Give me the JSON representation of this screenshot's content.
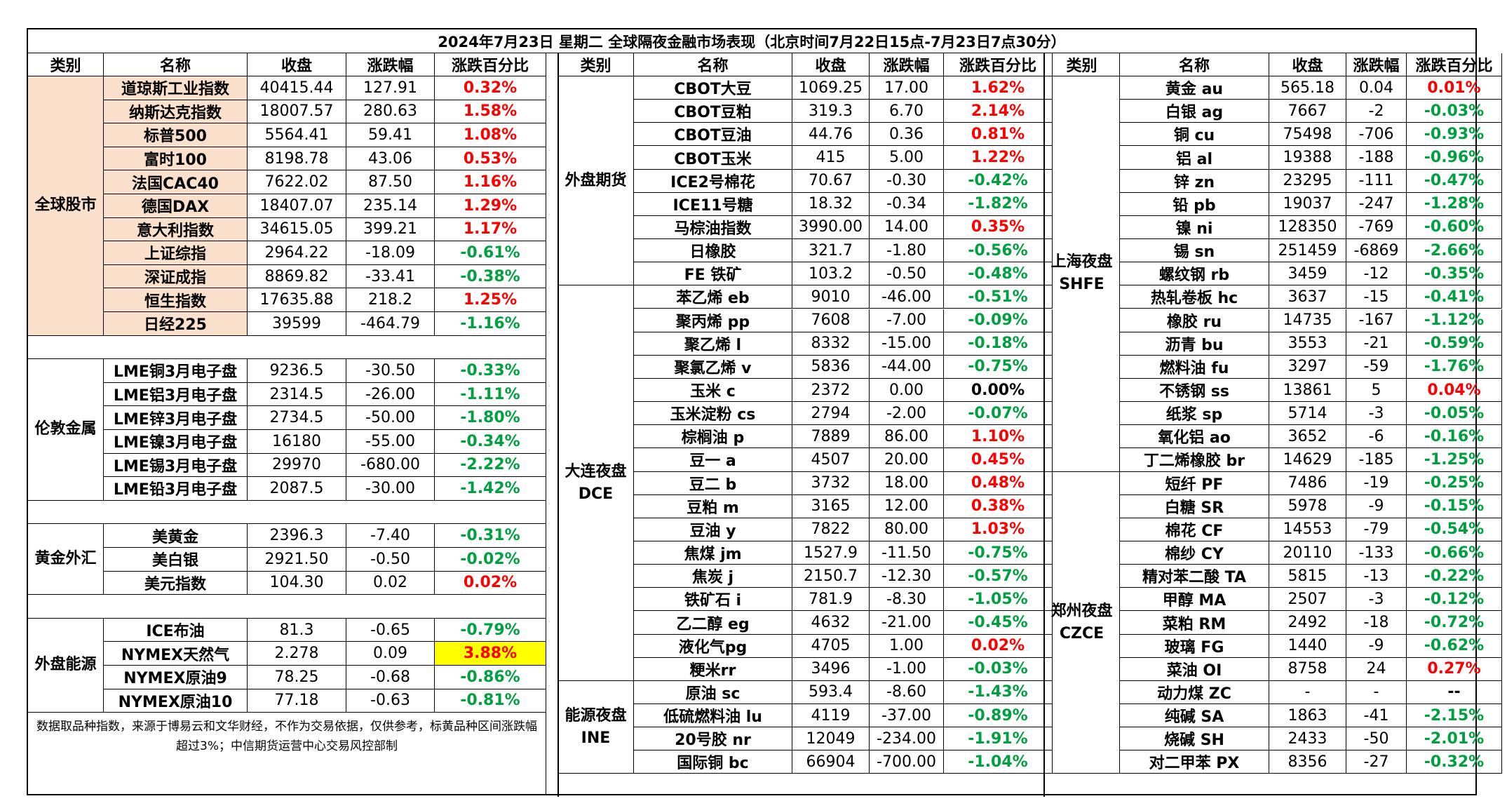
{
  "title": "2024年7月23日 星期二 全球隔夜金融市场表现（北京时间7月22日15点-7月23日7点30分）",
  "headers": [
    "类别",
    "名称",
    "收盘",
    "涨跌幅",
    "涨跌百分比"
  ],
  "note": "数据取品种指数，来源于博易云和文华财经，不作为交易依据，仅供参考，标黄品种区间涨跌幅超过3%；中信期货运营中心交易风控部制",
  "colors": {
    "up": "#ff0000",
    "down": "#00a040",
    "peach": "#fbe1cc",
    "highlight": "#ffff00"
  },
  "sections": [
    {
      "panel": 0,
      "category": "全球股市",
      "peach": true,
      "rows": [
        {
          "name": "道琼斯工业指数",
          "close": "40415.44",
          "change": "127.91",
          "pct": "0.32%",
          "dir": "up"
        },
        {
          "name": "纳斯达克指数",
          "close": "18007.57",
          "change": "280.63",
          "pct": "1.58%",
          "dir": "up"
        },
        {
          "name": "标普500",
          "close": "5564.41",
          "change": "59.41",
          "pct": "1.08%",
          "dir": "up"
        },
        {
          "name": "富时100",
          "close": "8198.78",
          "change": "43.06",
          "pct": "0.53%",
          "dir": "up"
        },
        {
          "name": "法国CAC40",
          "close": "7622.02",
          "change": "87.50",
          "pct": "1.16%",
          "dir": "up"
        },
        {
          "name": "德国DAX",
          "close": "18407.07",
          "change": "235.14",
          "pct": "1.29%",
          "dir": "up"
        },
        {
          "name": "意大利指数",
          "close": "34615.05",
          "change": "399.21",
          "pct": "1.17%",
          "dir": "up"
        },
        {
          "name": "上证综指",
          "close": "2964.22",
          "change": "-18.09",
          "pct": "-0.61%",
          "dir": "down"
        },
        {
          "name": "深证成指",
          "close": "8869.82",
          "change": "-33.41",
          "pct": "-0.38%",
          "dir": "down"
        },
        {
          "name": "恒生指数",
          "close": "17635.88",
          "change": "218.2",
          "pct": "1.25%",
          "dir": "up"
        },
        {
          "name": "日经225",
          "close": "39599",
          "change": "-464.79",
          "pct": "-1.16%",
          "dir": "down"
        }
      ]
    },
    {
      "panel": 0,
      "category": "伦敦金属",
      "peach": false,
      "rows": [
        {
          "name": "LME铜3月电子盘",
          "close": "9236.5",
          "change": "-30.50",
          "pct": "-0.33%",
          "dir": "down"
        },
        {
          "name": "LME铝3月电子盘",
          "close": "2314.5",
          "change": "-26.00",
          "pct": "-1.11%",
          "dir": "down"
        },
        {
          "name": "LME锌3月电子盘",
          "close": "2734.5",
          "change": "-50.00",
          "pct": "-1.80%",
          "dir": "down"
        },
        {
          "name": "LME镍3月电子盘",
          "close": "16180",
          "change": "-55.00",
          "pct": "-0.34%",
          "dir": "down"
        },
        {
          "name": "LME锡3月电子盘",
          "close": "29970",
          "change": "-680.00",
          "pct": "-2.22%",
          "dir": "down"
        },
        {
          "name": "LME铅3月电子盘",
          "close": "2087.5",
          "change": "-30.00",
          "pct": "-1.42%",
          "dir": "down"
        }
      ]
    },
    {
      "panel": 0,
      "category": "黄金外汇",
      "peach": false,
      "rows": [
        {
          "name": "美黄金",
          "close": "2396.3",
          "change": "-7.40",
          "pct": "-0.31%",
          "dir": "down"
        },
        {
          "name": "美白银",
          "close": "2921.50",
          "change": "-0.50",
          "pct": "-0.02%",
          "dir": "down"
        },
        {
          "name": "美元指数",
          "close": "104.30",
          "change": "0.02",
          "pct": "0.02%",
          "dir": "up"
        }
      ]
    },
    {
      "panel": 0,
      "category": "外盘能源",
      "peach": false,
      "rows": [
        {
          "name": "ICE布油",
          "close": "81.3",
          "change": "-0.65",
          "pct": "-0.79%",
          "dir": "down"
        },
        {
          "name": "NYMEX天然气",
          "close": "2.278",
          "change": "0.09",
          "pct": "3.88%",
          "dir": "up",
          "highlight": true
        },
        {
          "name": "NYMEX原油9",
          "close": "78.25",
          "change": "-0.68",
          "pct": "-0.86%",
          "dir": "down"
        },
        {
          "name": "NYMEX原油10",
          "close": "77.18",
          "change": "-0.63",
          "pct": "-0.81%",
          "dir": "down"
        }
      ]
    },
    {
      "panel": 1,
      "category": "外盘期货",
      "peach": false,
      "rows": [
        {
          "name": "CBOT大豆",
          "close": "1069.25",
          "change": "17.00",
          "pct": "1.62%",
          "dir": "up"
        },
        {
          "name": "CBOT豆粕",
          "close": "319.3",
          "change": "6.70",
          "pct": "2.14%",
          "dir": "up"
        },
        {
          "name": "CBOT豆油",
          "close": "44.76",
          "change": "0.36",
          "pct": "0.81%",
          "dir": "up"
        },
        {
          "name": "CBOT玉米",
          "close": "415",
          "change": "5.00",
          "pct": "1.22%",
          "dir": "up"
        },
        {
          "name": "ICE2号棉花",
          "close": "70.67",
          "change": "-0.30",
          "pct": "-0.42%",
          "dir": "down"
        },
        {
          "name": "ICE11号糖",
          "close": "18.32",
          "change": "-0.34",
          "pct": "-1.82%",
          "dir": "down"
        },
        {
          "name": "马棕油指数",
          "close": "3990.00",
          "change": "14.00",
          "pct": "0.35%",
          "dir": "up"
        },
        {
          "name": "日橡胶",
          "close": "321.7",
          "change": "-1.80",
          "pct": "-0.56%",
          "dir": "down"
        },
        {
          "name": "FE 铁矿",
          "close": "103.2",
          "change": "-0.50",
          "pct": "-0.48%",
          "dir": "down"
        }
      ]
    },
    {
      "panel": 1,
      "category": "大连夜盘\nDCE",
      "peach": false,
      "rows": [
        {
          "name": "苯乙烯 eb",
          "close": "9010",
          "change": "-46.00",
          "pct": "-0.51%",
          "dir": "down"
        },
        {
          "name": "聚丙烯 pp",
          "close": "7608",
          "change": "-7.00",
          "pct": "-0.09%",
          "dir": "down"
        },
        {
          "name": "聚乙烯 l",
          "close": "8332",
          "change": "-15.00",
          "pct": "-0.18%",
          "dir": "down"
        },
        {
          "name": "聚氯乙烯 v",
          "close": "5836",
          "change": "-44.00",
          "pct": "-0.75%",
          "dir": "down"
        },
        {
          "name": "玉米 c",
          "close": "2372",
          "change": "0.00",
          "pct": "0.00%",
          "dir": "flat"
        },
        {
          "name": "玉米淀粉 cs",
          "close": "2794",
          "change": "-2.00",
          "pct": "-0.07%",
          "dir": "down"
        },
        {
          "name": "棕榈油 p",
          "close": "7889",
          "change": "86.00",
          "pct": "1.10%",
          "dir": "up"
        },
        {
          "name": "豆一 a",
          "close": "4507",
          "change": "20.00",
          "pct": "0.45%",
          "dir": "up"
        },
        {
          "name": "豆二 b",
          "close": "3732",
          "change": "18.00",
          "pct": "0.48%",
          "dir": "up"
        },
        {
          "name": "豆粕 m",
          "close": "3165",
          "change": "12.00",
          "pct": "0.38%",
          "dir": "up"
        },
        {
          "name": "豆油 y",
          "close": "7822",
          "change": "80.00",
          "pct": "1.03%",
          "dir": "up"
        },
        {
          "name": "焦煤 jm",
          "close": "1527.9",
          "change": "-11.50",
          "pct": "-0.75%",
          "dir": "down"
        },
        {
          "name": "焦炭 j",
          "close": "2150.7",
          "change": "-12.30",
          "pct": "-0.57%",
          "dir": "down"
        },
        {
          "name": "铁矿石 i",
          "close": "781.9",
          "change": "-8.30",
          "pct": "-1.05%",
          "dir": "down"
        },
        {
          "name": "乙二醇 eg",
          "close": "4632",
          "change": "-21.00",
          "pct": "-0.45%",
          "dir": "down"
        },
        {
          "name": "液化气pg",
          "close": "4705",
          "change": "1.00",
          "pct": "0.02%",
          "dir": "up"
        },
        {
          "name": "粳米rr",
          "close": "3496",
          "change": "-1.00",
          "pct": "-0.03%",
          "dir": "down"
        }
      ]
    },
    {
      "panel": 1,
      "category": "能源夜盘\nINE",
      "peach": false,
      "rows": [
        {
          "name": "原油 sc",
          "close": "593.4",
          "change": "-8.60",
          "pct": "-1.43%",
          "dir": "down"
        },
        {
          "name": "低硫燃料油 lu",
          "close": "4119",
          "change": "-37.00",
          "pct": "-0.89%",
          "dir": "down"
        },
        {
          "name": "20号胶 nr",
          "close": "12049",
          "change": "-234.00",
          "pct": "-1.91%",
          "dir": "down"
        },
        {
          "name": "国际铜 bc",
          "close": "66904",
          "change": "-700.00",
          "pct": "-1.04%",
          "dir": "down"
        }
      ]
    },
    {
      "panel": 2,
      "category": "上海夜盘\nSHFE",
      "peach": false,
      "rows": [
        {
          "name": "黄金 au",
          "close": "565.18",
          "change": "0.04",
          "pct": "0.01%",
          "dir": "up"
        },
        {
          "name": "白银 ag",
          "close": "7667",
          "change": "-2",
          "pct": "-0.03%",
          "dir": "down"
        },
        {
          "name": "铜 cu",
          "close": "75498",
          "change": "-706",
          "pct": "-0.93%",
          "dir": "down"
        },
        {
          "name": "铝 al",
          "close": "19388",
          "change": "-188",
          "pct": "-0.96%",
          "dir": "down"
        },
        {
          "name": "锌 zn",
          "close": "23295",
          "change": "-111",
          "pct": "-0.47%",
          "dir": "down"
        },
        {
          "name": "铅 pb",
          "close": "19037",
          "change": "-247",
          "pct": "-1.28%",
          "dir": "down"
        },
        {
          "name": "镍 ni",
          "close": "128350",
          "change": "-769",
          "pct": "-0.60%",
          "dir": "down"
        },
        {
          "name": "锡 sn",
          "close": "251459",
          "change": "-6869",
          "pct": "-2.66%",
          "dir": "down"
        },
        {
          "name": "螺纹钢 rb",
          "close": "3459",
          "change": "-12",
          "pct": "-0.35%",
          "dir": "down"
        },
        {
          "name": "热轧卷板 hc",
          "close": "3637",
          "change": "-15",
          "pct": "-0.41%",
          "dir": "down"
        },
        {
          "name": "橡胶 ru",
          "close": "14735",
          "change": "-167",
          "pct": "-1.12%",
          "dir": "down"
        },
        {
          "name": "沥青 bu",
          "close": "3553",
          "change": "-21",
          "pct": "-0.59%",
          "dir": "down"
        },
        {
          "name": "燃料油 fu",
          "close": "3297",
          "change": "-59",
          "pct": "-1.76%",
          "dir": "down"
        },
        {
          "name": "不锈钢 ss",
          "close": "13861",
          "change": "5",
          "pct": "0.04%",
          "dir": "up"
        },
        {
          "name": "纸浆 sp",
          "close": "5714",
          "change": "-3",
          "pct": "-0.05%",
          "dir": "down"
        },
        {
          "name": "氧化铝 ao",
          "close": "3652",
          "change": "-6",
          "pct": "-0.16%",
          "dir": "down"
        },
        {
          "name": "丁二烯橡胶 br",
          "close": "14629",
          "change": "-185",
          "pct": "-1.25%",
          "dir": "down"
        }
      ]
    },
    {
      "panel": 2,
      "category": "郑州夜盘\nCZCE",
      "peach": false,
      "rows": [
        {
          "name": "短纤 PF",
          "close": "7486",
          "change": "-19",
          "pct": "-0.25%",
          "dir": "down"
        },
        {
          "name": "白糖 SR",
          "close": "5978",
          "change": "-9",
          "pct": "-0.15%",
          "dir": "down"
        },
        {
          "name": "棉花 CF",
          "close": "14553",
          "change": "-79",
          "pct": "-0.54%",
          "dir": "down"
        },
        {
          "name": "棉纱 CY",
          "close": "20110",
          "change": "-133",
          "pct": "-0.66%",
          "dir": "down"
        },
        {
          "name": "精对苯二酸 TA",
          "close": "5815",
          "change": "-13",
          "pct": "-0.22%",
          "dir": "down"
        },
        {
          "name": "甲醇 MA",
          "close": "2507",
          "change": "-3",
          "pct": "-0.12%",
          "dir": "down"
        },
        {
          "name": "菜粕 RM",
          "close": "2492",
          "change": "-18",
          "pct": "-0.72%",
          "dir": "down"
        },
        {
          "name": "玻璃 FG",
          "close": "1440",
          "change": "-9",
          "pct": "-0.62%",
          "dir": "down"
        },
        {
          "name": "菜油 OI",
          "close": "8758",
          "change": "24",
          "pct": "0.27%",
          "dir": "up"
        },
        {
          "name": "动力煤 ZC",
          "close": "-",
          "change": "-",
          "pct": "--",
          "dir": "flat"
        },
        {
          "name": "纯碱 SA",
          "close": "1863",
          "change": "-41",
          "pct": "-2.15%",
          "dir": "down"
        },
        {
          "name": "烧碱 SH",
          "close": "2433",
          "change": "-50",
          "pct": "-2.01%",
          "dir": "down"
        },
        {
          "name": "对二甲苯 PX",
          "close": "8356",
          "change": "-27",
          "pct": "-0.32%",
          "dir": "down"
        }
      ]
    }
  ]
}
